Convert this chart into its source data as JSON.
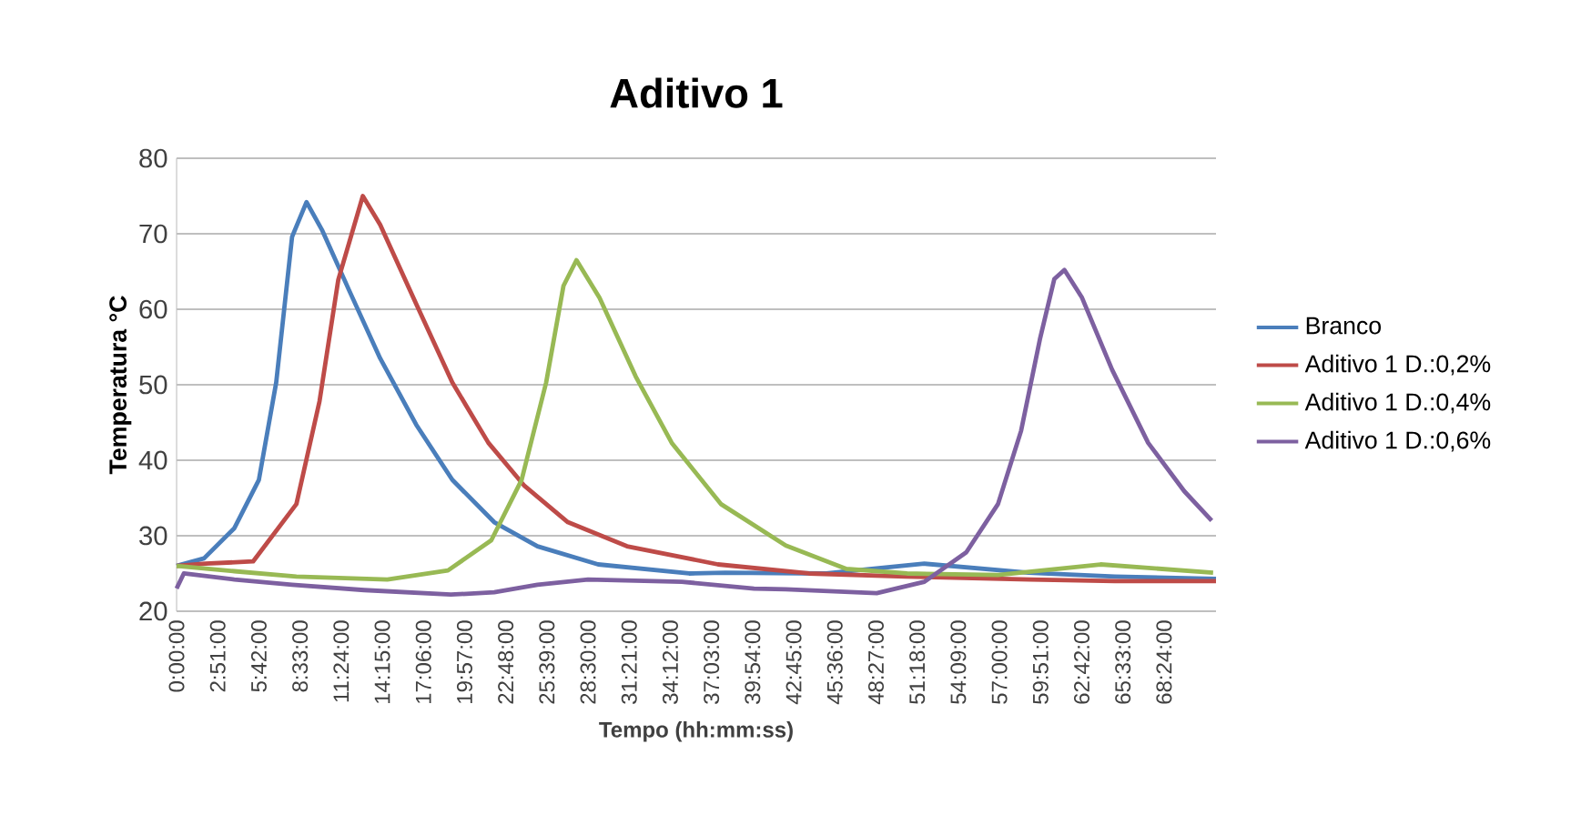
{
  "chart_data": {
    "type": "line",
    "title": "Aditivo 1",
    "xlabel": "Tempo (hh:mm:ss)",
    "ylabel": "Temperatura °C",
    "xlim": [
      0,
      72
    ],
    "ylim": [
      20,
      80
    ],
    "yticks": [
      20,
      30,
      40,
      50,
      60,
      70,
      80
    ],
    "xticks": [
      {
        "value": 0,
        "label": "0:00:00"
      },
      {
        "value": 2.85,
        "label": "2:51:00"
      },
      {
        "value": 5.7,
        "label": "5:42:00"
      },
      {
        "value": 8.55,
        "label": "8:33:00"
      },
      {
        "value": 11.4,
        "label": "11:24:00"
      },
      {
        "value": 14.25,
        "label": "14:15:00"
      },
      {
        "value": 17.1,
        "label": "17:06:00"
      },
      {
        "value": 19.95,
        "label": "19:57:00"
      },
      {
        "value": 22.8,
        "label": "22:48:00"
      },
      {
        "value": 25.65,
        "label": "25:39:00"
      },
      {
        "value": 28.5,
        "label": "28:30:00"
      },
      {
        "value": 31.35,
        "label": "31:21:00"
      },
      {
        "value": 34.2,
        "label": "34:12:00"
      },
      {
        "value": 37.05,
        "label": "37:03:00"
      },
      {
        "value": 39.9,
        "label": "39:54:00"
      },
      {
        "value": 42.75,
        "label": "42:45:00"
      },
      {
        "value": 45.6,
        "label": "45:36:00"
      },
      {
        "value": 48.45,
        "label": "48:27:00"
      },
      {
        "value": 51.3,
        "label": "51:18:00"
      },
      {
        "value": 54.15,
        "label": "54:09:00"
      },
      {
        "value": 57,
        "label": "57:00:00"
      },
      {
        "value": 59.85,
        "label": "59:51:00"
      },
      {
        "value": 62.7,
        "label": "62:42:00"
      },
      {
        "value": 65.55,
        "label": "65:33:00"
      },
      {
        "value": 68.4,
        "label": "68:24:00"
      }
    ],
    "grid": "y",
    "legend": "right",
    "marker": "none",
    "line_style": "solid",
    "series": [
      {
        "name": "Branco",
        "color": "#4a7ebb",
        "x": [
          0,
          1.9,
          4.0,
          5.7,
          6.9,
          8.0,
          9.0,
          10.1,
          12.0,
          14.1,
          16.6,
          19.1,
          22.0,
          25.0,
          29.2,
          35.5,
          38,
          45,
          51.8,
          59,
          65,
          72
        ],
        "values": [
          26,
          27,
          31,
          37.4,
          50.3,
          69.6,
          74.2,
          70.4,
          62.3,
          53.5,
          44.7,
          37.4,
          31.8,
          28.6,
          26.2,
          25,
          25.1,
          25,
          26.3,
          25.1,
          24.6,
          24.3
        ]
      },
      {
        "name": "Aditivo 1 D.:0,2%",
        "color": "#be4b48",
        "x": [
          0,
          2,
          5.3,
          8.3,
          9.9,
          11.2,
          12.9,
          14.1,
          16.6,
          19.1,
          21.6,
          24.1,
          27.1,
          31.2,
          37.5,
          43.8,
          50.5,
          59.1,
          65,
          72
        ],
        "values": [
          26,
          26.3,
          26.6,
          34.2,
          47.8,
          63.9,
          75,
          71.2,
          60.7,
          50.3,
          42.3,
          36.6,
          31.8,
          28.6,
          26.2,
          25,
          24.6,
          24.2,
          24,
          24
        ]
      },
      {
        "name": "Aditivo 1 D.:0,4%",
        "color": "#98b954",
        "x": [
          0,
          4,
          8.3,
          14.6,
          18.8,
          21.8,
          23.9,
          25.6,
          26.8,
          27.7,
          29.3,
          31.8,
          34.3,
          37.7,
          42.2,
          46.4,
          50.6,
          56.9,
          64,
          71.8
        ],
        "values": [
          26,
          25.3,
          24.6,
          24.2,
          25.4,
          29.4,
          37.4,
          50.3,
          63.1,
          66.5,
          61.5,
          51.1,
          42.3,
          34.2,
          28.7,
          25.6,
          25,
          24.8,
          26.2,
          25.1
        ]
      },
      {
        "name": "Aditivo 1 D.:0,6%",
        "color": "#7d60a0",
        "x": [
          0,
          0.5,
          4,
          8,
          13,
          19,
          22,
          25,
          28.5,
          35,
          40,
          42.2,
          48.5,
          51.8,
          54.7,
          56.9,
          58.5,
          59.8,
          60.8,
          61.5,
          62.7,
          64.8,
          67.3,
          69.8,
          71.7
        ],
        "values": [
          23,
          25,
          24.2,
          23.5,
          22.8,
          22.2,
          22.5,
          23.5,
          24.2,
          23.9,
          23,
          22.9,
          22.4,
          23.9,
          27.8,
          34.2,
          43.9,
          56,
          64,
          65.2,
          61.6,
          52,
          42.3,
          35.9,
          32
        ]
      }
    ]
  }
}
